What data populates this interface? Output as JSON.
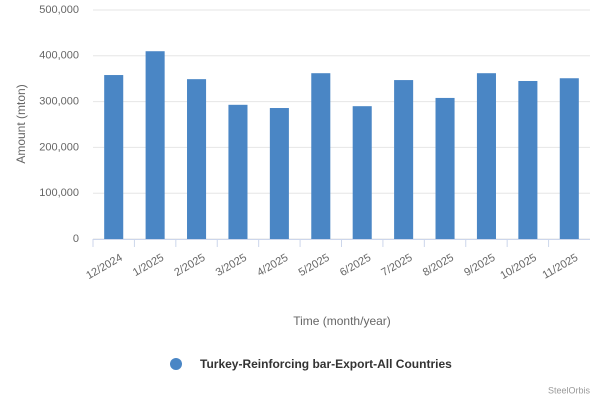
{
  "chart_data": {
    "type": "bar",
    "x_label": "Time (month/year)",
    "y_label": "Amount (mton)",
    "credit": "SteelOrbis",
    "categories": [
      "12/2024",
      "1/2025",
      "2/2025",
      "3/2025",
      "4/2025",
      "5/2025",
      "6/2025",
      "7/2025",
      "8/2025",
      "9/2025",
      "10/2025",
      "11/2025"
    ],
    "series": [
      {
        "name": "Turkey-Reinforcing bar-Export-All Countries",
        "color": "#4a86c5",
        "values": [
          358000,
          410000,
          349000,
          293000,
          286000,
          362000,
          290000,
          347000,
          308000,
          362000,
          345000,
          351000
        ]
      }
    ],
    "ylim": [
      0,
      500000
    ],
    "yticks": [
      0,
      {
        "value": 100000,
        "label": "100,000"
      },
      {
        "value": 200000,
        "label": "200,000"
      },
      {
        "value": 300000,
        "label": "300,000"
      },
      {
        "value": 400000,
        "label": "400,000"
      },
      {
        "value": 500000,
        "label": "500,000"
      }
    ],
    "grid": true
  }
}
